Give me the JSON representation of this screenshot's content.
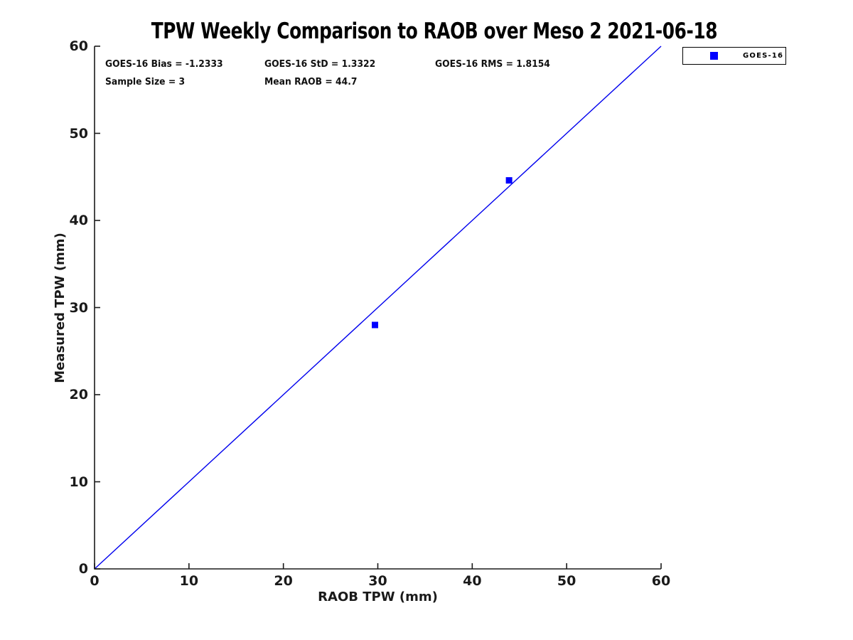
{
  "chart_data": {
    "type": "scatter",
    "title": "TPW Weekly Comparison to RAOB over Meso 2 2021-06-18",
    "xlabel": "RAOB TPW (mm)",
    "ylabel": "Measured TPW (mm)",
    "xlim": [
      0,
      60
    ],
    "ylim": [
      0,
      60
    ],
    "x_ticks": [
      0,
      10,
      20,
      30,
      40,
      50,
      60
    ],
    "y_ticks": [
      0,
      10,
      20,
      30,
      40,
      50,
      60
    ],
    "grid": false,
    "legend_position": "top-right-outside",
    "series": [
      {
        "name": "GOES-16",
        "marker": "square",
        "color": "#0000ff",
        "points": [
          [
            29.7,
            28.0
          ],
          [
            43.9,
            44.6
          ]
        ]
      }
    ],
    "reference_line": {
      "from": [
        0,
        0
      ],
      "to": [
        60,
        60
      ],
      "color": "#0000ee",
      "style": "solid"
    },
    "annotations": {
      "bias": "GOES-16 Bias = -1.2333",
      "std": "GOES-16 StD = 1.3322",
      "rms": "GOES-16 RMS = 1.8154",
      "sample_size": "Sample Size = 3",
      "mean_raob": "Mean RAOB = 44.7"
    }
  },
  "colors": {
    "marker_blue": "#0000ff",
    "line_blue": "#0000ee",
    "axis": "#1a1a1a",
    "text": "#000000",
    "background": "#ffffff"
  }
}
